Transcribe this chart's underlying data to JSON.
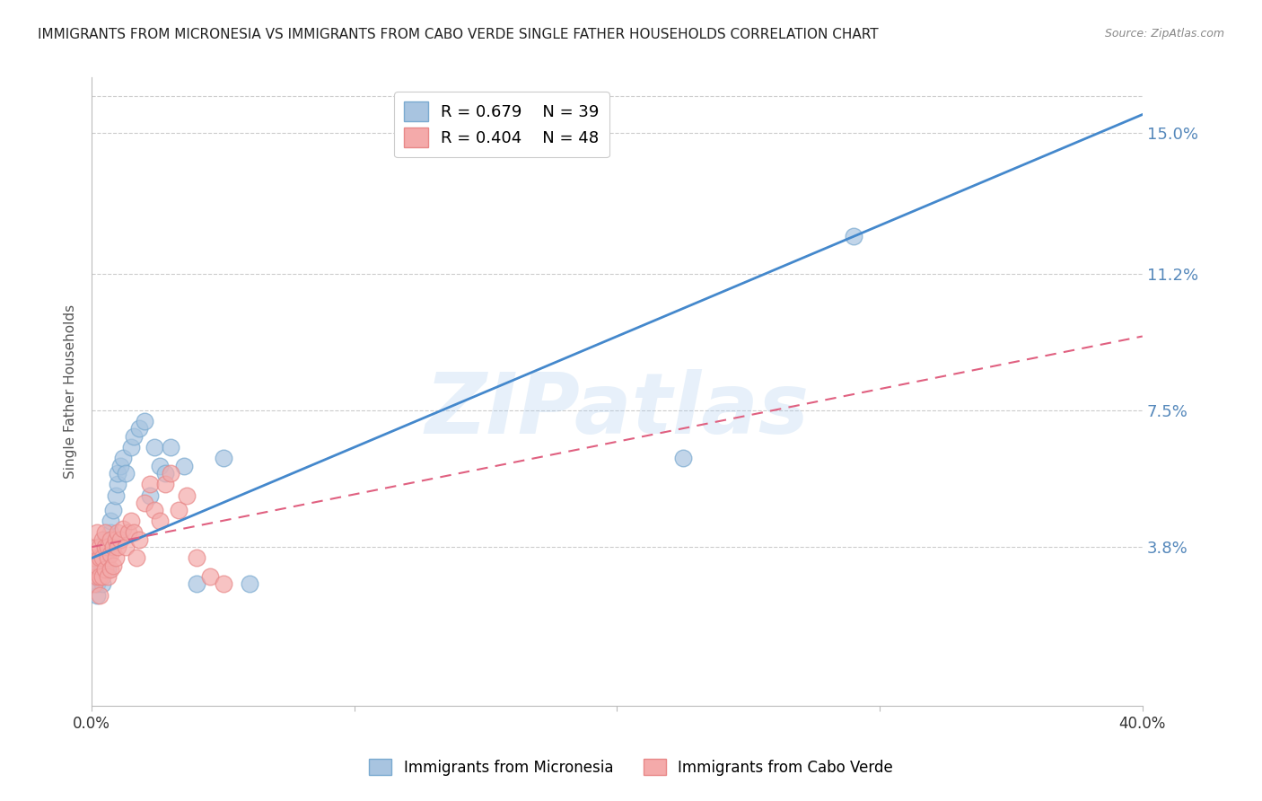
{
  "title": "IMMIGRANTS FROM MICRONESIA VS IMMIGRANTS FROM CABO VERDE SINGLE FATHER HOUSEHOLDS CORRELATION CHART",
  "source": "Source: ZipAtlas.com",
  "ylabel": "Single Father Households",
  "ytick_labels": [
    "15.0%",
    "11.2%",
    "7.5%",
    "3.8%"
  ],
  "ytick_values": [
    0.15,
    0.112,
    0.075,
    0.038
  ],
  "xlim": [
    0.0,
    0.4
  ],
  "ylim": [
    -0.005,
    0.165
  ],
  "series1_label": "Immigrants from Micronesia",
  "series1_R": "0.679",
  "series1_N": "39",
  "series1_color": "#A8C4E0",
  "series1_edge_color": "#7AAAD0",
  "series1_line_color": "#4488CC",
  "series2_label": "Immigrants from Cabo Verde",
  "series2_R": "0.404",
  "series2_N": "48",
  "series2_color": "#F4AAAA",
  "series2_edge_color": "#E88888",
  "series2_line_color": "#E06080",
  "watermark": "ZIPatlas",
  "background_color": "#FFFFFF",
  "grid_color": "#CCCCCC",
  "title_fontsize": 11,
  "axis_label_color": "#5588BB",
  "micronesia_x": [
    0.001,
    0.001,
    0.002,
    0.002,
    0.002,
    0.003,
    0.003,
    0.003,
    0.004,
    0.004,
    0.005,
    0.005,
    0.005,
    0.006,
    0.006,
    0.007,
    0.007,
    0.008,
    0.009,
    0.01,
    0.01,
    0.011,
    0.012,
    0.013,
    0.015,
    0.016,
    0.018,
    0.02,
    0.022,
    0.024,
    0.026,
    0.028,
    0.03,
    0.035,
    0.04,
    0.05,
    0.06,
    0.225,
    0.29
  ],
  "micronesia_y": [
    0.03,
    0.033,
    0.025,
    0.028,
    0.032,
    0.03,
    0.033,
    0.035,
    0.028,
    0.032,
    0.035,
    0.038,
    0.04,
    0.032,
    0.038,
    0.042,
    0.045,
    0.048,
    0.052,
    0.055,
    0.058,
    0.06,
    0.062,
    0.058,
    0.065,
    0.068,
    0.07,
    0.072,
    0.052,
    0.065,
    0.06,
    0.058,
    0.065,
    0.06,
    0.028,
    0.062,
    0.028,
    0.062,
    0.122
  ],
  "caboverde_x": [
    0.001,
    0.001,
    0.001,
    0.002,
    0.002,
    0.002,
    0.002,
    0.003,
    0.003,
    0.003,
    0.003,
    0.004,
    0.004,
    0.004,
    0.005,
    0.005,
    0.005,
    0.006,
    0.006,
    0.006,
    0.007,
    0.007,
    0.007,
    0.008,
    0.008,
    0.009,
    0.009,
    0.01,
    0.01,
    0.011,
    0.012,
    0.013,
    0.014,
    0.015,
    0.016,
    0.017,
    0.018,
    0.02,
    0.022,
    0.024,
    0.026,
    0.028,
    0.03,
    0.033,
    0.036,
    0.04,
    0.045,
    0.05
  ],
  "caboverde_y": [
    0.028,
    0.032,
    0.035,
    0.03,
    0.033,
    0.038,
    0.042,
    0.025,
    0.03,
    0.035,
    0.038,
    0.03,
    0.035,
    0.04,
    0.032,
    0.038,
    0.042,
    0.03,
    0.035,
    0.038,
    0.032,
    0.036,
    0.04,
    0.033,
    0.038,
    0.035,
    0.04,
    0.038,
    0.042,
    0.04,
    0.043,
    0.038,
    0.042,
    0.045,
    0.042,
    0.035,
    0.04,
    0.05,
    0.055,
    0.048,
    0.045,
    0.055,
    0.058,
    0.048,
    0.052,
    0.035,
    0.03,
    0.028
  ]
}
